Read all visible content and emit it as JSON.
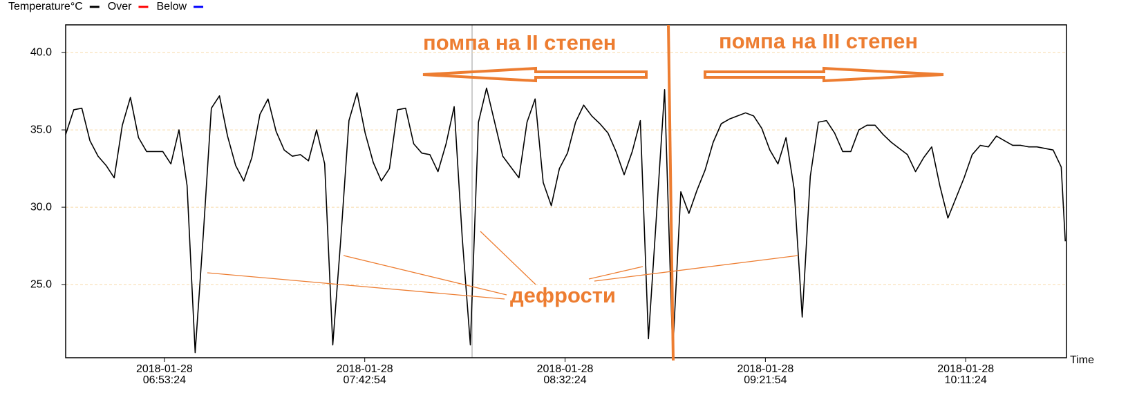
{
  "chart_data": {
    "type": "line",
    "x_label": "Time",
    "annotations": [
      "помпа на II степен",
      "помпа на III степен",
      "дефрости"
    ],
    "x": [
      "2018-01-28 06:29:00",
      "2018-01-28 06:31:00",
      "2018-01-28 06:33:00",
      "2018-01-28 06:35:00",
      "2018-01-28 06:37:00",
      "2018-01-28 06:39:00",
      "2018-01-28 06:41:00",
      "2018-01-28 06:43:00",
      "2018-01-28 06:45:00",
      "2018-01-28 06:47:00",
      "2018-01-28 06:49:00",
      "2018-01-28 06:51:00",
      "2018-01-28 06:53:00",
      "2018-01-28 06:55:00",
      "2018-01-28 06:57:00",
      "2018-01-28 06:59:00",
      "2018-01-28 07:01:00",
      "2018-01-28 07:03:00",
      "2018-01-28 07:05:00",
      "2018-01-28 07:07:00",
      "2018-01-28 07:09:00",
      "2018-01-28 07:11:00",
      "2018-01-28 07:13:00",
      "2018-01-28 07:15:00",
      "2018-01-28 07:17:00",
      "2018-01-28 07:19:00",
      "2018-01-28 07:21:00",
      "2018-01-28 07:23:00",
      "2018-01-28 07:25:00",
      "2018-01-28 07:27:00",
      "2018-01-28 07:29:00",
      "2018-01-28 07:31:00",
      "2018-01-28 07:33:00",
      "2018-01-28 07:35:00",
      "2018-01-28 07:37:00",
      "2018-01-28 07:39:00",
      "2018-01-28 07:41:00",
      "2018-01-28 07:43:00",
      "2018-01-28 07:45:00",
      "2018-01-28 07:47:00",
      "2018-01-28 07:49:00",
      "2018-01-28 07:51:00",
      "2018-01-28 07:53:00",
      "2018-01-28 07:55:00",
      "2018-01-28 07:57:00",
      "2018-01-28 07:59:00",
      "2018-01-28 08:01:00",
      "2018-01-28 08:03:00",
      "2018-01-28 08:05:00",
      "2018-01-28 08:07:00",
      "2018-01-28 08:09:00",
      "2018-01-28 08:11:00",
      "2018-01-28 08:13:00",
      "2018-01-28 08:15:00",
      "2018-01-28 08:17:00",
      "2018-01-28 08:19:00",
      "2018-01-28 08:21:00",
      "2018-01-28 08:23:00",
      "2018-01-28 08:25:00",
      "2018-01-28 08:27:00",
      "2018-01-28 08:29:00",
      "2018-01-28 08:31:00",
      "2018-01-28 08:33:00",
      "2018-01-28 08:35:00",
      "2018-01-28 08:37:00",
      "2018-01-28 08:39:00",
      "2018-01-28 08:41:00",
      "2018-01-28 08:43:00",
      "2018-01-28 08:45:00",
      "2018-01-28 08:47:00",
      "2018-01-28 08:49:00",
      "2018-01-28 08:51:00",
      "2018-01-28 08:53:00",
      "2018-01-28 08:55:00",
      "2018-01-28 08:57:00",
      "2018-01-28 08:59:00",
      "2018-01-28 09:01:00",
      "2018-01-28 09:03:00",
      "2018-01-28 09:05:00",
      "2018-01-28 09:07:00",
      "2018-01-28 09:09:00",
      "2018-01-28 09:11:00",
      "2018-01-28 09:13:00",
      "2018-01-28 09:15:00",
      "2018-01-28 09:17:00",
      "2018-01-28 09:19:00",
      "2018-01-28 09:21:00",
      "2018-01-28 09:23:00",
      "2018-01-28 09:25:00",
      "2018-01-28 09:27:00",
      "2018-01-28 09:29:00",
      "2018-01-28 09:31:00",
      "2018-01-28 09:33:00",
      "2018-01-28 09:35:00",
      "2018-01-28 09:37:00",
      "2018-01-28 09:39:00",
      "2018-01-28 09:41:00",
      "2018-01-28 09:43:00",
      "2018-01-28 09:45:00",
      "2018-01-28 09:47:00",
      "2018-01-28 09:49:00",
      "2018-01-28 09:51:00",
      "2018-01-28 09:53:00",
      "2018-01-28 09:55:00",
      "2018-01-28 09:57:00",
      "2018-01-28 09:59:00",
      "2018-01-28 10:01:00",
      "2018-01-28 10:03:00",
      "2018-01-28 10:05:00",
      "2018-01-28 10:07:00",
      "2018-01-28 10:09:00",
      "2018-01-28 10:11:00",
      "2018-01-28 10:13:00",
      "2018-01-28 10:15:00",
      "2018-01-28 10:17:00",
      "2018-01-28 10:19:00",
      "2018-01-28 10:21:00",
      "2018-01-28 10:23:00",
      "2018-01-28 10:25:00",
      "2018-01-28 10:27:00",
      "2018-01-28 10:29:00",
      "2018-01-28 10:31:00",
      "2018-01-28 10:33:00",
      "2018-01-28 10:35:00",
      "2018-01-28 10:36:00"
    ],
    "series": [
      {
        "name": "Temperature°C",
        "color": "#000000",
        "values": [
          34.7,
          36.3,
          36.4,
          34.3,
          33.3,
          32.7,
          31.9,
          35.3,
          37.1,
          34.5,
          33.6,
          33.6,
          33.6,
          32.8,
          35.0,
          31.4,
          20.6,
          28.2,
          36.4,
          37.2,
          34.6,
          32.7,
          31.7,
          33.2,
          36.0,
          37.0,
          34.9,
          33.7,
          33.3,
          33.4,
          33.0,
          35.0,
          32.8,
          21.1,
          28.0,
          35.6,
          37.4,
          34.8,
          32.9,
          31.7,
          32.5,
          36.3,
          36.4,
          34.1,
          33.5,
          33.4,
          32.3,
          34.1,
          36.5,
          28.0,
          21.1,
          35.5,
          37.7,
          35.5,
          33.3,
          32.6,
          31.9,
          35.5,
          37.0,
          31.6,
          30.1,
          32.5,
          33.5,
          35.5,
          36.6,
          35.9,
          35.4,
          34.8,
          33.6,
          32.1,
          33.6,
          35.6,
          21.5,
          29.5,
          37.6,
          20.6,
          31.0,
          29.6,
          31.1,
          32.4,
          34.2,
          35.4,
          35.7,
          35.9,
          36.1,
          35.9,
          35.1,
          33.7,
          32.8,
          34.5,
          31.2,
          22.9,
          32.0,
          35.5,
          35.6,
          34.8,
          33.6,
          33.6,
          35.0,
          35.3,
          35.3,
          34.7,
          34.2,
          33.8,
          33.4,
          32.3,
          33.2,
          33.9,
          31.4,
          29.3,
          30.6,
          31.9,
          33.4,
          34.0,
          33.9,
          34.6,
          34.3,
          34.0,
          34.0,
          33.9,
          33.9,
          33.8,
          33.7,
          32.6,
          27.8
        ]
      },
      {
        "name": "Over",
        "color": "#ff0000",
        "values": [
          null,
          null,
          null,
          null,
          null,
          null,
          null,
          null,
          null,
          null,
          null,
          null,
          null,
          null,
          null,
          null,
          null,
          null,
          null,
          null,
          null,
          null,
          null,
          null,
          null,
          null,
          null,
          null,
          null,
          null,
          null,
          null,
          null,
          null,
          null,
          null,
          null,
          null,
          null,
          null,
          null,
          null,
          null,
          null,
          null,
          null,
          null,
          null,
          null,
          null,
          null,
          null,
          null,
          null,
          null,
          null,
          null,
          null,
          null,
          null,
          null,
          null,
          null,
          null,
          null,
          null,
          null,
          null,
          null,
          null,
          null,
          null,
          null,
          null,
          null,
          null,
          null,
          null,
          null,
          null,
          null,
          null,
          null,
          null,
          null,
          null,
          null,
          null,
          null,
          null,
          null,
          null,
          null,
          null,
          null,
          null,
          null,
          null,
          null,
          null,
          null,
          null,
          null,
          null,
          null,
          null,
          null,
          null,
          null,
          null,
          null,
          null,
          null,
          null,
          null,
          null,
          null,
          null,
          null,
          null,
          null,
          null,
          null,
          null,
          null
        ]
      },
      {
        "name": "Below",
        "color": "#0000ff",
        "values": [
          null,
          null,
          null,
          null,
          null,
          null,
          null,
          null,
          null,
          null,
          null,
          null,
          null,
          null,
          null,
          null,
          null,
          null,
          null,
          null,
          null,
          null,
          null,
          null,
          null,
          null,
          null,
          null,
          null,
          null,
          null,
          null,
          null,
          null,
          null,
          null,
          null,
          null,
          null,
          null,
          null,
          null,
          null,
          null,
          null,
          null,
          null,
          null,
          null,
          null,
          null,
          null,
          null,
          null,
          null,
          null,
          null,
          null,
          null,
          null,
          null,
          null,
          null,
          null,
          null,
          null,
          null,
          null,
          null,
          null,
          null,
          null,
          null,
          null,
          null,
          null,
          null,
          null,
          null,
          null,
          null,
          null,
          null,
          null,
          null,
          null,
          null,
          null,
          null,
          null,
          null,
          null,
          null,
          null,
          null,
          null,
          null,
          null,
          null,
          null,
          null,
          null,
          null,
          null,
          null,
          null,
          null,
          null,
          null,
          null,
          null,
          null,
          null,
          null,
          null,
          null,
          null,
          null,
          null,
          null,
          null,
          null,
          null,
          null,
          null
        ]
      }
    ],
    "xlim": [
      "2018-01-28 06:29:00",
      "2018-01-28 10:36:18"
    ],
    "xticks": [
      {
        "value": "2018-01-28 06:53:24",
        "label": "2018-01-28\n06:53:24"
      },
      {
        "value": "2018-01-28 07:42:54",
        "label": "2018-01-28\n07:42:54"
      },
      {
        "value": "2018-01-28 08:32:24",
        "label": "2018-01-28\n08:32:24"
      },
      {
        "value": "2018-01-28 09:21:54",
        "label": "2018-01-28\n09:21:54"
      },
      {
        "value": "2018-01-28 10:11:24",
        "label": "2018-01-28\n10:11:24"
      }
    ],
    "ylim": [
      20.27,
      41.79
    ],
    "yticks": [
      {
        "value": 25,
        "label": "25.0"
      },
      {
        "value": 30,
        "label": "30.0"
      },
      {
        "value": 35,
        "label": "35.0"
      },
      {
        "value": 40,
        "label": "40.0"
      }
    ],
    "grid": true,
    "legend": "top-left"
  }
}
